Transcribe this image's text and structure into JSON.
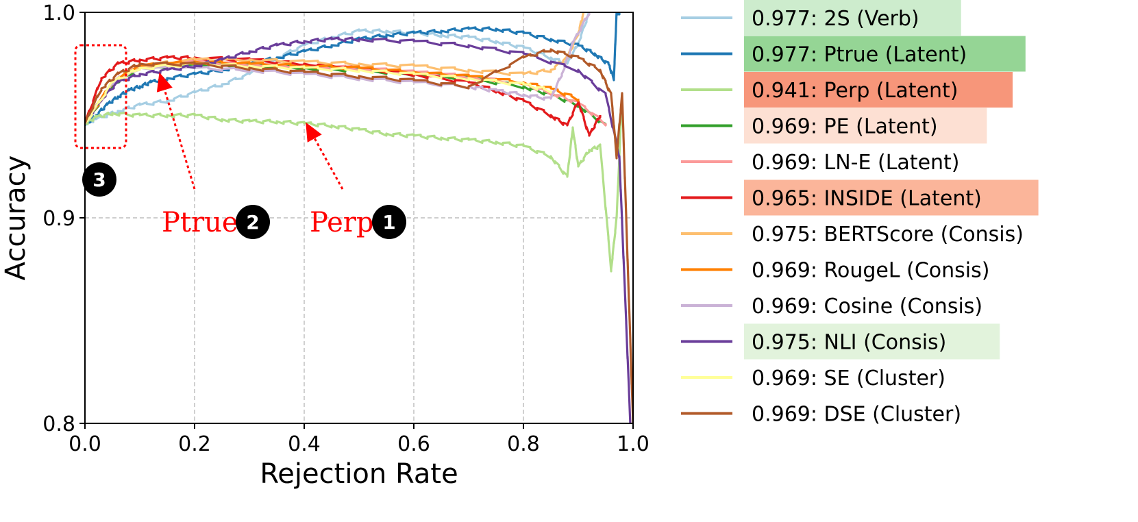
{
  "chart_data": {
    "type": "line",
    "title": "",
    "xlabel": "Rejection Rate",
    "ylabel": "Accuracy",
    "xlim": [
      0.0,
      1.0
    ],
    "ylim": [
      0.8,
      1.0
    ],
    "xticks": [
      "0.0",
      "0.2",
      "0.4",
      "0.6",
      "0.8",
      "1.0"
    ],
    "yticks": [
      "0.8",
      "0.9",
      "1.0"
    ],
    "grid": true,
    "legend_position": "outside-right",
    "series": [
      {
        "name": "0.977: 2S (Verb)",
        "color": "#a6cee3",
        "highlight": "#cdeccd",
        "x": [
          0,
          0.02,
          0.06,
          0.1,
          0.15,
          0.2,
          0.25,
          0.3,
          0.35,
          0.4,
          0.45,
          0.5,
          0.55,
          0.6,
          0.65,
          0.7,
          0.75,
          0.8,
          0.85,
          0.88,
          0.9,
          0.92
        ],
        "y": [
          0.946,
          0.948,
          0.952,
          0.955,
          0.957,
          0.961,
          0.965,
          0.97,
          0.978,
          0.984,
          0.988,
          0.991,
          0.991,
          0.99,
          0.989,
          0.988,
          0.986,
          0.983,
          0.978,
          0.975,
          0.985,
          1.0
        ]
      },
      {
        "name": "0.977: Ptrue (Latent)",
        "color": "#1f78b4",
        "highlight": "#95d595",
        "x": [
          0,
          0.02,
          0.04,
          0.06,
          0.08,
          0.1,
          0.12,
          0.15,
          0.2,
          0.25,
          0.3,
          0.35,
          0.4,
          0.45,
          0.5,
          0.55,
          0.6,
          0.65,
          0.7,
          0.75,
          0.8,
          0.85,
          0.9,
          0.93,
          0.955,
          0.965,
          0.97,
          0.975
        ],
        "y": [
          0.945,
          0.95,
          0.955,
          0.959,
          0.962,
          0.964,
          0.966,
          0.968,
          0.97,
          0.972,
          0.975,
          0.978,
          0.981,
          0.984,
          0.987,
          0.989,
          0.99,
          0.991,
          0.992,
          0.992,
          0.99,
          0.987,
          0.984,
          0.98,
          0.975,
          0.968,
          1.0,
          1.0
        ]
      },
      {
        "name": "0.941: Perp (Latent)",
        "color": "#b2df8a",
        "highlight": "#f7967a",
        "x": [
          0,
          0.02,
          0.05,
          0.1,
          0.15,
          0.2,
          0.25,
          0.3,
          0.35,
          0.4,
          0.45,
          0.5,
          0.55,
          0.6,
          0.65,
          0.7,
          0.75,
          0.8,
          0.85,
          0.88,
          0.89,
          0.9,
          0.92,
          0.94,
          0.96,
          0.97,
          0.98
        ],
        "y": [
          0.946,
          0.949,
          0.951,
          0.95,
          0.95,
          0.95,
          0.948,
          0.947,
          0.947,
          0.946,
          0.945,
          0.943,
          0.941,
          0.94,
          0.939,
          0.938,
          0.937,
          0.935,
          0.93,
          0.92,
          0.944,
          0.925,
          0.933,
          0.935,
          0.875,
          0.9,
          0.96
        ]
      },
      {
        "name": "0.969: PE (Latent)",
        "color": "#33a02c",
        "highlight": "#fde0d3",
        "x": [
          0,
          0.05,
          0.1,
          0.2,
          0.3,
          0.4,
          0.5,
          0.6,
          0.7,
          0.8,
          0.85,
          0.9,
          0.95
        ],
        "y": [
          0.946,
          0.965,
          0.973,
          0.975,
          0.974,
          0.973,
          0.972,
          0.97,
          0.968,
          0.964,
          0.96,
          0.955,
          0.945
        ]
      },
      {
        "name": "0.969: LN-E (Latent)",
        "color": "#fb9a99",
        "highlight": "",
        "x": [
          0,
          0.05,
          0.1,
          0.2,
          0.3,
          0.4,
          0.5,
          0.6,
          0.7,
          0.8,
          0.85,
          0.9,
          0.95
        ],
        "y": [
          0.946,
          0.966,
          0.974,
          0.976,
          0.975,
          0.974,
          0.973,
          0.971,
          0.969,
          0.965,
          0.961,
          0.956,
          0.946
        ]
      },
      {
        "name": "0.965: INSIDE (Latent)",
        "color": "#e31a1c",
        "highlight": "#fbb59a",
        "x": [
          0,
          0.03,
          0.06,
          0.1,
          0.15,
          0.2,
          0.3,
          0.4,
          0.5,
          0.6,
          0.7,
          0.75,
          0.8,
          0.85,
          0.88,
          0.9,
          0.92,
          0.94
        ],
        "y": [
          0.946,
          0.968,
          0.975,
          0.977,
          0.978,
          0.978,
          0.977,
          0.975,
          0.973,
          0.97,
          0.966,
          0.962,
          0.957,
          0.95,
          0.945,
          0.957,
          0.94,
          0.95
        ]
      },
      {
        "name": "0.975: BERTScore (Consis)",
        "color": "#fdbf6f",
        "highlight": "",
        "x": [
          0,
          0.05,
          0.1,
          0.2,
          0.3,
          0.4,
          0.5,
          0.6,
          0.7,
          0.8,
          0.85,
          0.88,
          0.9,
          0.91
        ],
        "y": [
          0.946,
          0.965,
          0.974,
          0.977,
          0.977,
          0.976,
          0.975,
          0.974,
          0.972,
          0.97,
          0.972,
          0.978,
          0.99,
          1.0
        ]
      },
      {
        "name": "0.969: RougeL (Consis)",
        "color": "#ff7f00",
        "highlight": "",
        "x": [
          0,
          0.05,
          0.1,
          0.2,
          0.3,
          0.4,
          0.5,
          0.6,
          0.7,
          0.8,
          0.85,
          0.9
        ],
        "y": [
          0.946,
          0.966,
          0.974,
          0.976,
          0.975,
          0.974,
          0.973,
          0.971,
          0.969,
          0.966,
          0.963,
          0.958
        ]
      },
      {
        "name": "0.969: Cosine (Consis)",
        "color": "#cab2d6",
        "highlight": "",
        "x": [
          0,
          0.05,
          0.1,
          0.2,
          0.3,
          0.4,
          0.5,
          0.6,
          0.7,
          0.75,
          0.8,
          0.85,
          0.87,
          0.89,
          0.92
        ],
        "y": [
          0.946,
          0.965,
          0.973,
          0.973,
          0.972,
          0.97,
          0.968,
          0.966,
          0.964,
          0.962,
          0.96,
          0.958,
          0.97,
          0.985,
          1.0
        ]
      },
      {
        "name": "0.975: NLI (Consis)",
        "color": "#6a3d9a",
        "highlight": "#e2f3dc",
        "x": [
          0,
          0.03,
          0.06,
          0.1,
          0.15,
          0.2,
          0.25,
          0.3,
          0.35,
          0.4,
          0.45,
          0.5,
          0.6,
          0.7,
          0.8,
          0.9,
          0.95,
          0.975,
          0.985,
          0.995
        ],
        "y": [
          0.946,
          0.958,
          0.966,
          0.97,
          0.972,
          0.974,
          0.977,
          0.981,
          0.984,
          0.986,
          0.987,
          0.987,
          0.986,
          0.984,
          0.98,
          0.972,
          0.96,
          0.93,
          0.865,
          0.8
        ]
      },
      {
        "name": "0.969: SE (Cluster)",
        "color": "#ffff99",
        "highlight": "",
        "x": [
          0,
          0.05,
          0.1,
          0.2,
          0.3,
          0.4,
          0.5,
          0.6,
          0.7,
          0.8,
          0.85
        ],
        "y": [
          0.946,
          0.966,
          0.973,
          0.975,
          0.974,
          0.973,
          0.972,
          0.97,
          0.968,
          0.965,
          0.962
        ]
      },
      {
        "name": "0.969: DSE (Cluster)",
        "color": "#b15928",
        "highlight": "",
        "x": [
          0,
          0.03,
          0.06,
          0.1,
          0.2,
          0.3,
          0.4,
          0.5,
          0.6,
          0.7,
          0.8,
          0.85,
          0.9,
          0.94,
          0.96,
          0.97,
          0.98,
          0.99,
          1.0
        ],
        "y": [
          0.946,
          0.963,
          0.97,
          0.975,
          0.975,
          0.973,
          0.971,
          0.969,
          0.967,
          0.964,
          0.978,
          0.982,
          0.978,
          0.972,
          0.96,
          0.93,
          0.96,
          0.88,
          0.8
        ]
      }
    ],
    "annotations": [
      {
        "label": "Ptrue",
        "badge": "2",
        "x_text": 0.2,
        "y_text": 0.908,
        "x_arrow": 0.14,
        "y_arrow": 0.967
      },
      {
        "label": "Perp",
        "badge": "1",
        "x_text": 0.47,
        "y_text": 0.908,
        "x_arrow": 0.41,
        "y_arrow": 0.943
      },
      {
        "label": "",
        "badge": "3",
        "x_box": [
          0.0,
          0.07
        ],
        "y_box": [
          0.934,
          0.984
        ]
      }
    ]
  }
}
